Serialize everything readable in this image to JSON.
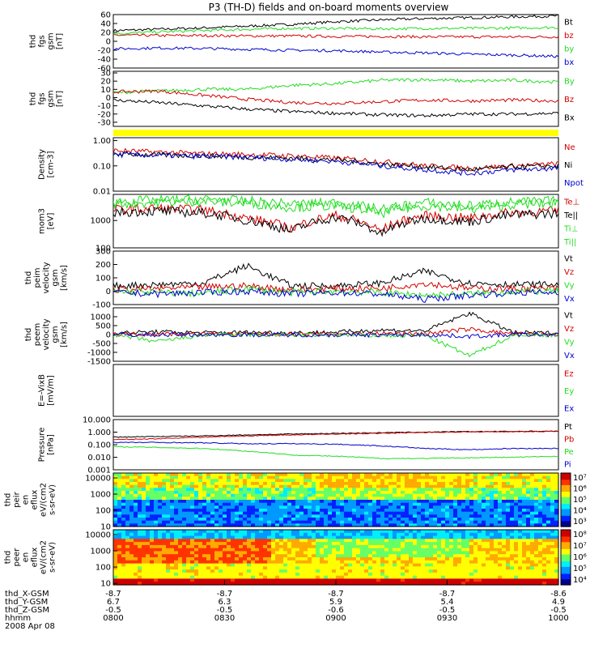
{
  "title": "P3 (TH-D) fields and on-board moments overview",
  "colors": {
    "black": "#000000",
    "red": "#d40000",
    "green": "#22dd22",
    "blue": "#0000cc",
    "yellow": "#ffff00"
  },
  "x_labels": {
    "rows": [
      "thd_X-GSM",
      "thd_Y-GSM",
      "thd_Z-GSM",
      "hhmm",
      "2008 Apr 08"
    ],
    "columns": [
      [
        "-8.7",
        "6.7",
        "-0.5",
        "0800"
      ],
      [
        "-8.7",
        "6.3",
        "-0.5",
        "0830"
      ],
      [
        "-8.7",
        "5.9",
        "-0.6",
        "0900"
      ],
      [
        "-8.7",
        "5.4",
        "-0.5",
        "0930"
      ],
      [
        "-8.6",
        "4.9",
        "-0.5",
        "1000"
      ]
    ]
  },
  "chart_data": [
    {
      "type": "line",
      "ylabel": "thd fgs gsm [nT]",
      "ylim": [
        -60,
        60
      ],
      "ticks": [
        "60",
        "40",
        "20",
        "0",
        "-20",
        "-40",
        "-60"
      ],
      "series": [
        {
          "name": "Bt",
          "color": "#000000",
          "values": [
            24,
            27,
            30,
            34,
            38,
            44,
            48,
            51,
            53,
            55,
            57
          ]
        },
        {
          "name": "bz",
          "color": "#d40000",
          "values": [
            14,
            13,
            13,
            12,
            12,
            11,
            11,
            10,
            10,
            10,
            10
          ]
        },
        {
          "name": "by",
          "color": "#22dd22",
          "values": [
            17,
            21,
            24,
            27,
            29,
            29,
            28,
            29,
            29,
            30,
            31
          ]
        },
        {
          "name": "bx",
          "color": "#0000cc",
          "values": [
            -17,
            -15,
            -16,
            -18,
            -20,
            -21,
            -24,
            -26,
            -29,
            -31,
            -34
          ]
        }
      ]
    },
    {
      "type": "line",
      "ylabel": "thd fgs gsm [nT]",
      "ylim": [
        -35,
        32
      ],
      "ticks": [
        "30",
        "20",
        "10",
        "0",
        "-10",
        "-20",
        "-30"
      ],
      "series": [
        {
          "name": "By",
          "color": "#22dd22",
          "values": [
            6,
            8,
            10,
            10,
            15,
            17,
            21,
            22,
            20,
            21,
            19
          ]
        },
        {
          "name": "Bz",
          "color": "#d40000",
          "values": [
            7,
            8,
            3,
            -2,
            -6,
            -7,
            -5,
            -3,
            -4,
            -3,
            -4
          ]
        },
        {
          "name": "Bx",
          "color": "#000000",
          "values": [
            -3,
            -6,
            -10,
            -14,
            -17,
            -19,
            -21,
            -22,
            -20,
            -20,
            -19
          ]
        }
      ]
    },
    {
      "type": "line",
      "ylabel": "",
      "ylim": [
        0,
        1
      ],
      "ticks": [],
      "series": []
    },
    {
      "type": "line",
      "ylabel": "Density [cm-3]",
      "log": true,
      "ylim": [
        0.01,
        1.3
      ],
      "ticks": [
        "1.00",
        "0.10",
        "0.01"
      ],
      "series": [
        {
          "name": "Ne",
          "color": "#d40000",
          "values": [
            0.4,
            0.35,
            0.3,
            0.28,
            0.25,
            0.2,
            0.15,
            0.1,
            0.08,
            0.1,
            0.12
          ]
        },
        {
          "name": "Ni",
          "color": "#000000",
          "values": [
            0.3,
            0.27,
            0.25,
            0.22,
            0.2,
            0.17,
            0.12,
            0.09,
            0.07,
            0.09,
            0.1
          ]
        },
        {
          "name": "Npot",
          "color": "#0000cc",
          "values": [
            0.28,
            0.26,
            0.24,
            0.22,
            0.18,
            0.15,
            0.1,
            0.07,
            0.05,
            0.07,
            0.08
          ]
        }
      ]
    },
    {
      "type": "line",
      "ylabel": "mom3 [eV]",
      "log": true,
      "ylim": [
        100,
        9000
      ],
      "ticks": [
        "1000",
        "100"
      ],
      "series": [
        {
          "name": "Te⊥",
          "color": "#d40000",
          "values": [
            2500,
            2800,
            2400,
            1200,
            500,
            1500,
            400,
            1500,
            1200,
            2000,
            2200
          ]
        },
        {
          "name": "Te||",
          "color": "#000000",
          "values": [
            2000,
            2200,
            1900,
            1000,
            400,
            1300,
            300,
            1200,
            900,
            1600,
            1800
          ]
        },
        {
          "name": "Ti⊥",
          "color": "#22dd22",
          "values": [
            4000,
            4500,
            5000,
            4200,
            3000,
            3500,
            1800,
            3500,
            2500,
            3800,
            4200
          ]
        },
        {
          "name": "Ti||",
          "color": "#22dd22",
          "values": [
            5000,
            5500,
            6000,
            5200,
            4000,
            4500,
            2500,
            4500,
            3500,
            4800,
            5200
          ]
        }
      ]
    },
    {
      "type": "line",
      "ylabel": "thd peim velocity gsm [km/s]",
      "ylim": [
        -100,
        300
      ],
      "ticks": [
        "300",
        "200",
        "100",
        "0",
        "-100"
      ],
      "series": [
        {
          "name": "Vt",
          "color": "#000000",
          "values": [
            40,
            50,
            60,
            190,
            40,
            40,
            60,
            150,
            60,
            50,
            50
          ]
        },
        {
          "name": "Vz",
          "color": "#d40000",
          "values": [
            10,
            20,
            30,
            40,
            10,
            20,
            20,
            60,
            20,
            20,
            20
          ]
        },
        {
          "name": "Vy",
          "color": "#22dd22",
          "values": [
            0,
            -10,
            -20,
            20,
            -10,
            0,
            -10,
            -30,
            -20,
            0,
            0
          ]
        },
        {
          "name": "Vx",
          "color": "#0000cc",
          "values": [
            -10,
            -20,
            -10,
            0,
            -20,
            -10,
            -20,
            -60,
            -30,
            -10,
            -10
          ]
        }
      ]
    },
    {
      "type": "line",
      "ylabel": "thd peem velocity gsm [km/s]",
      "ylim": [
        -1500,
        1500
      ],
      "ticks": [
        "1000",
        "500",
        "0",
        "-500",
        "-1000",
        "-1500"
      ],
      "series": [
        {
          "name": "Vt",
          "color": "#000000",
          "values": [
            80,
            150,
            100,
            120,
            100,
            130,
            250,
            200,
            1200,
            100,
            80
          ]
        },
        {
          "name": "Vz",
          "color": "#d40000",
          "values": [
            20,
            40,
            30,
            30,
            20,
            40,
            60,
            50,
            300,
            30,
            20
          ]
        },
        {
          "name": "Vy",
          "color": "#22dd22",
          "values": [
            -20,
            -400,
            -30,
            -20,
            -30,
            -40,
            -60,
            -50,
            -1200,
            -30,
            -20
          ]
        },
        {
          "name": "Vx",
          "color": "#0000cc",
          "values": [
            -10,
            -20,
            -10,
            -10,
            -20,
            -20,
            -30,
            -20,
            -100,
            -10,
            -10
          ]
        }
      ]
    },
    {
      "type": "line",
      "ylabel": "E=-VixB [mV/m]",
      "ylim": [
        0,
        1
      ],
      "ticks": [],
      "series": [
        {
          "name": "Ez",
          "color": "#d40000",
          "values": []
        },
        {
          "name": "Ey",
          "color": "#22dd22",
          "values": []
        },
        {
          "name": "Ex",
          "color": "#0000cc",
          "values": []
        }
      ]
    },
    {
      "type": "line",
      "ylabel": "Pressure [nPa]",
      "log": true,
      "ylim": [
        0.001,
        10
      ],
      "ticks": [
        "10.000",
        "1.000",
        "0.100",
        "0.010",
        "0.001"
      ],
      "series": [
        {
          "name": "Pt",
          "color": "#000000",
          "values": [
            0.4,
            0.45,
            0.5,
            0.6,
            0.7,
            0.8,
            0.9,
            1.0,
            1.1,
            1.15,
            1.2
          ]
        },
        {
          "name": "Pb",
          "color": "#d40000",
          "values": [
            0.25,
            0.3,
            0.4,
            0.5,
            0.6,
            0.7,
            0.8,
            0.95,
            1.05,
            1.1,
            1.15
          ]
        },
        {
          "name": "Pe",
          "color": "#22dd22",
          "values": [
            0.07,
            0.06,
            0.05,
            0.03,
            0.015,
            0.012,
            0.008,
            0.008,
            0.009,
            0.01,
            0.012
          ]
        },
        {
          "name": "Pi",
          "color": "#0000cc",
          "values": [
            0.15,
            0.15,
            0.14,
            0.12,
            0.12,
            0.11,
            0.08,
            0.05,
            0.04,
            0.05,
            0.05
          ]
        }
      ]
    },
    {
      "type": "heatmap",
      "ylabel": "thd peir en eflux eV/(cm2 s-sr-eV)",
      "ylim": [
        10,
        20000
      ],
      "ticks": [
        "10000",
        "1000",
        "100",
        "10"
      ],
      "colorbar_ticks": [
        "10⁷",
        "10⁶",
        "10⁵",
        "10⁴",
        "10³"
      ]
    },
    {
      "type": "heatmap",
      "ylabel": "thd peer en eflux eV/(cm2 s-sr-eV)",
      "ylim": [
        8,
        20000
      ],
      "ticks": [
        "10000",
        "1000",
        "100",
        "10"
      ],
      "colorbar_ticks": [
        "10⁸",
        "10⁷",
        "10⁶",
        "10⁵",
        "10⁴"
      ]
    }
  ]
}
